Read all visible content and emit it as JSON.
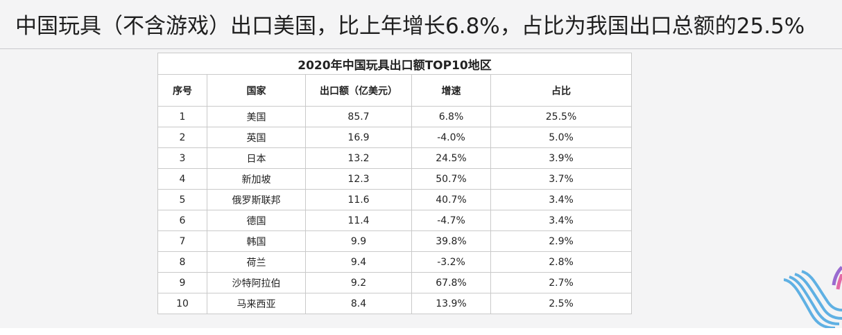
{
  "slide_title": "中国玩具（不含游戏）出口美国，比上年增长6.8%，占比为我国出口总额的25.5%",
  "table": {
    "title": "2020年中国玩具出口额TOP10地区",
    "headers": [
      "序号",
      "国家",
      "出口额（亿美元）",
      "增速",
      "占比"
    ],
    "rows": [
      [
        "1",
        "美国",
        "85.7",
        "6.8%",
        "25.5%"
      ],
      [
        "2",
        "英国",
        "16.9",
        "-4.0%",
        "5.0%"
      ],
      [
        "3",
        "日本",
        "13.2",
        "24.5%",
        "3.9%"
      ],
      [
        "4",
        "新加坡",
        "12.3",
        "50.7%",
        "3.7%"
      ],
      [
        "5",
        "俄罗斯联邦",
        "11.6",
        "40.7%",
        "3.4%"
      ],
      [
        "6",
        "德国",
        "11.4",
        "-4.7%",
        "3.4%"
      ],
      [
        "7",
        "韩国",
        "9.9",
        "39.8%",
        "2.9%"
      ],
      [
        "8",
        "荷兰",
        "9.4",
        "-3.2%",
        "2.8%"
      ],
      [
        "9",
        "沙特阿拉伯",
        "9.2",
        "67.8%",
        "2.7%"
      ],
      [
        "10",
        "马来西亚",
        "8.4",
        "13.9%",
        "2.5%"
      ]
    ]
  },
  "decoration": {
    "logo_icon": "wave-logo-icon",
    "colors": {
      "logo_blue": "#5fb0e3",
      "logo_purple": "#9a6bd0",
      "logo_pink": "#e36aa6"
    }
  }
}
